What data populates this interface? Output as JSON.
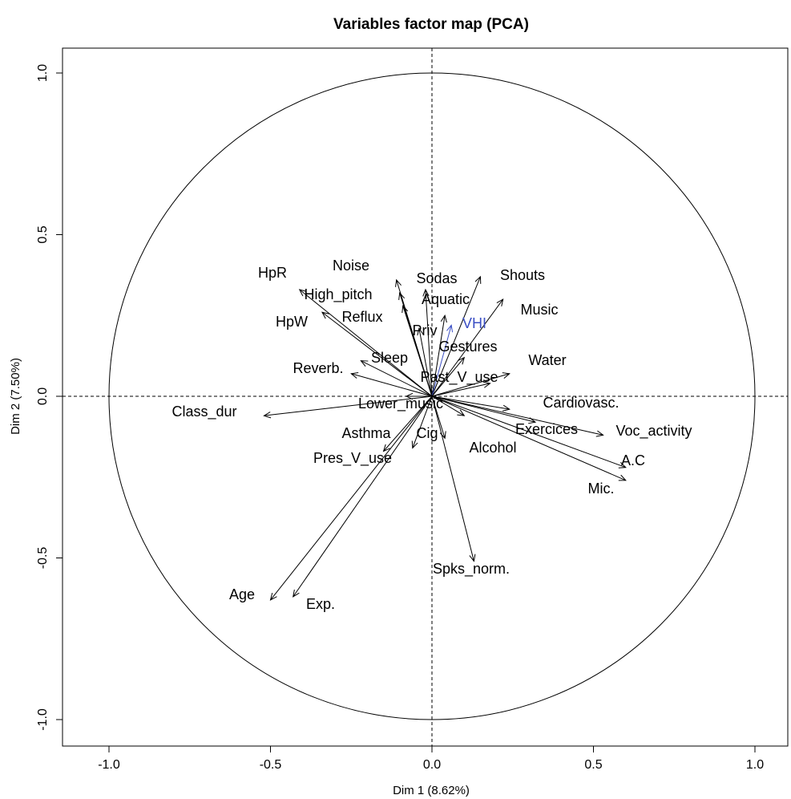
{
  "chart_data": {
    "type": "scatter",
    "title": "Variables factor map (PCA)",
    "xlabel": "Dim 1 (8.62%)",
    "ylabel": "Dim 2 (7.50%)",
    "xlim": [
      -1.0,
      1.0
    ],
    "ylim": [
      -1.0,
      1.0
    ],
    "xticks": [
      "-1.0",
      "-0.5",
      "0.0",
      "0.5",
      "1.0"
    ],
    "yticks": [
      "-1.0",
      "-0.5",
      "0.0",
      "0.5",
      "1.0"
    ],
    "unit_circle": true,
    "reference_lines": [
      0,
      0
    ],
    "arrows": [
      {
        "name": "HpR",
        "x": -0.41,
        "y": 0.33,
        "color": "#000000"
      },
      {
        "name": "Noise",
        "x": -0.11,
        "y": 0.36,
        "color": "#000000"
      },
      {
        "name": "Sodas",
        "x": -0.02,
        "y": 0.33,
        "color": "#000000"
      },
      {
        "name": "Shouts",
        "x": 0.15,
        "y": 0.37,
        "color": "#000000"
      },
      {
        "name": "High_pitch",
        "x": -0.1,
        "y": 0.32,
        "color": "#000000"
      },
      {
        "name": "Aquatic",
        "x": 0.04,
        "y": 0.25,
        "color": "#000000"
      },
      {
        "name": "Music",
        "x": 0.22,
        "y": 0.3,
        "color": "#000000"
      },
      {
        "name": "HpW",
        "x": -0.34,
        "y": 0.26,
        "color": "#000000"
      },
      {
        "name": "Reflux",
        "x": -0.09,
        "y": 0.28,
        "color": "#000000"
      },
      {
        "name": "VHI",
        "x": 0.06,
        "y": 0.22,
        "color": "#3b4fc4"
      },
      {
        "name": "Priv",
        "x": -0.04,
        "y": 0.21,
        "color": "#000000"
      },
      {
        "name": "Gestures",
        "x": 0.1,
        "y": 0.12,
        "color": "#000000"
      },
      {
        "name": "Water",
        "x": 0.24,
        "y": 0.07,
        "color": "#000000"
      },
      {
        "name": "Sleep",
        "x": -0.22,
        "y": 0.11,
        "color": "#000000"
      },
      {
        "name": "Reverb.",
        "x": -0.25,
        "y": 0.07,
        "color": "#000000"
      },
      {
        "name": "Past_V_use",
        "x": 0.18,
        "y": 0.04,
        "color": "#000000"
      },
      {
        "name": "Cardiovasc.",
        "x": 0.24,
        "y": -0.04,
        "color": "#000000"
      },
      {
        "name": "Class_dur",
        "x": -0.52,
        "y": -0.06,
        "color": "#000000"
      },
      {
        "name": "Lower_music",
        "x": -0.08,
        "y": 0.0,
        "color": "#000000"
      },
      {
        "name": "Voc_activity",
        "x": 0.53,
        "y": -0.12,
        "color": "#000000"
      },
      {
        "name": "Exercices",
        "x": 0.32,
        "y": -0.08,
        "color": "#000000"
      },
      {
        "name": "Asthma",
        "x": -0.06,
        "y": -0.16,
        "color": "#000000"
      },
      {
        "name": "Cig",
        "x": 0.04,
        "y": -0.13,
        "color": "#000000"
      },
      {
        "name": "Alcohol",
        "x": 0.1,
        "y": -0.06,
        "color": "#000000"
      },
      {
        "name": "A.C",
        "x": 0.6,
        "y": -0.22,
        "color": "#000000"
      },
      {
        "name": "Pres_V_use",
        "x": -0.15,
        "y": -0.17,
        "color": "#000000"
      },
      {
        "name": "Mic.",
        "x": 0.6,
        "y": -0.26,
        "color": "#000000"
      },
      {
        "name": "Spks_norm.",
        "x": 0.13,
        "y": -0.51,
        "color": "#000000"
      },
      {
        "name": "Age",
        "x": -0.5,
        "y": -0.63,
        "color": "#000000"
      },
      {
        "name": "Exp.",
        "x": -0.43,
        "y": -0.62,
        "color": "#000000"
      }
    ]
  }
}
